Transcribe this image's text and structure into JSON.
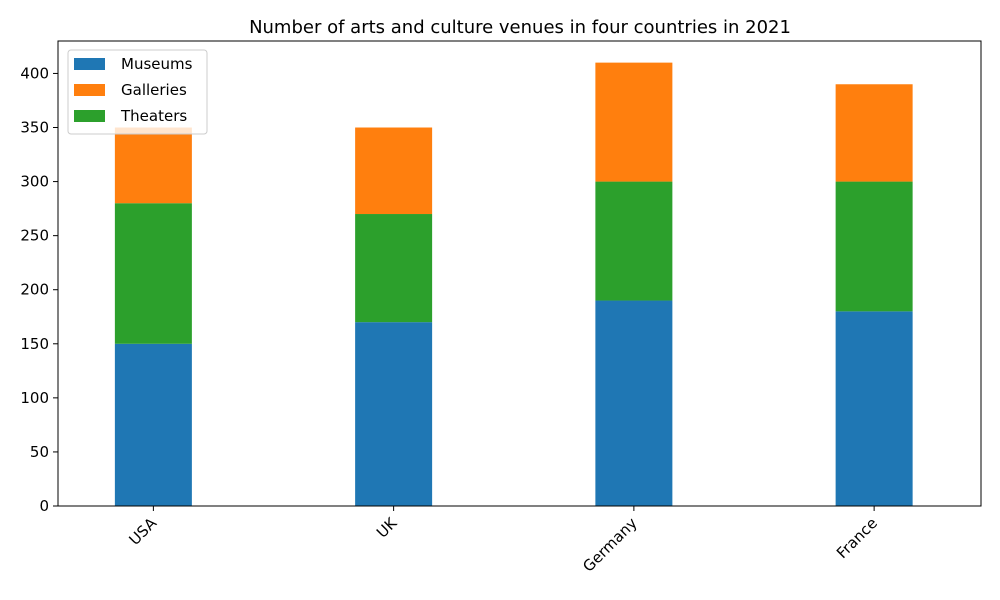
{
  "chart_data": {
    "type": "bar",
    "stacked": true,
    "title": "Number of arts and culture venues in four countries in 2021",
    "xlabel": "",
    "ylabel": "",
    "categories": [
      "USA",
      "UK",
      "Germany",
      "France"
    ],
    "series": [
      {
        "name": "Museums",
        "values": [
          150,
          170,
          190,
          180
        ],
        "color": "#1f77b4"
      },
      {
        "name": "Theaters",
        "values": [
          130,
          100,
          110,
          120
        ],
        "color": "#2ca02c"
      },
      {
        "name": "Galleries",
        "values": [
          70,
          80,
          110,
          90
        ],
        "color": "#ff7f0e"
      }
    ],
    "legend_order": [
      "Museums",
      "Galleries",
      "Theaters"
    ],
    "ylim": [
      0,
      430
    ],
    "yticks": [
      0,
      50,
      100,
      150,
      200,
      250,
      300,
      350,
      400
    ],
    "grid": false,
    "legend_position": "top-left"
  }
}
